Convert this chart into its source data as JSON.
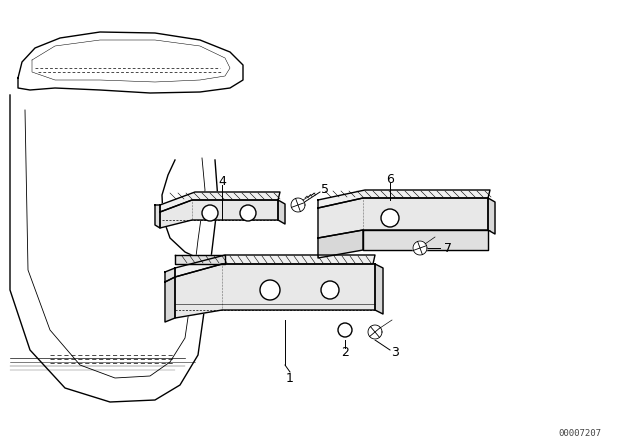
{
  "background_color": "#ffffff",
  "line_color": "#000000",
  "label_color": "#000000",
  "watermark_text": "00007207",
  "watermark_fontsize": 6.5,
  "figsize": [
    6.4,
    4.48
  ],
  "dpi": 100
}
